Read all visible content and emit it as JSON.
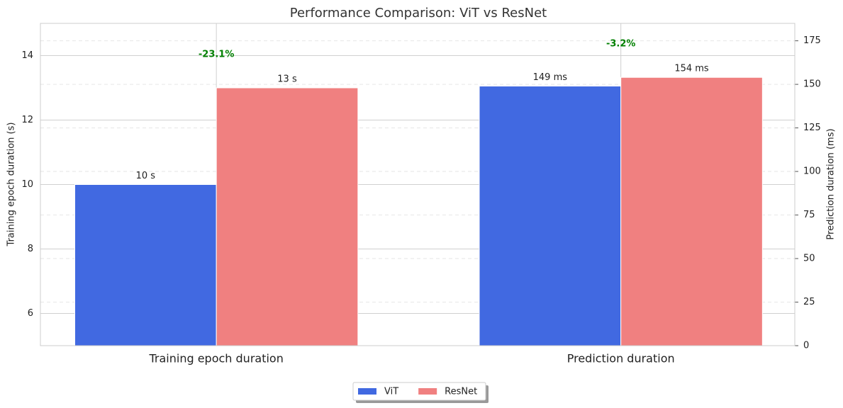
{
  "chart_data": {
    "type": "bar",
    "title": "Performance Comparison: ViT vs ResNet",
    "categories": [
      "Training epoch duration",
      "Prediction duration"
    ],
    "category_axes": [
      "y",
      "y2"
    ],
    "series": [
      {
        "name": "ViT",
        "color": "#4169e1",
        "values": [
          10,
          149
        ],
        "value_labels": [
          "10 s",
          "149 ms"
        ]
      },
      {
        "name": "ResNet",
        "color": "#f08080",
        "values": [
          13,
          154
        ],
        "value_labels": [
          "13 s",
          "154 ms"
        ]
      }
    ],
    "annotations": [
      "-23.1%",
      "-3.2%"
    ],
    "ylabel": "Training epoch duration (s)",
    "y2label": "Prediction duration (ms)",
    "ylim": [
      5,
      15
    ],
    "yticks": [
      6,
      8,
      10,
      12,
      14
    ],
    "y2lim": [
      0,
      185
    ],
    "y2ticks": [
      0,
      25,
      50,
      75,
      100,
      125,
      150,
      175
    ],
    "grid": true,
    "legend": "lower center"
  }
}
